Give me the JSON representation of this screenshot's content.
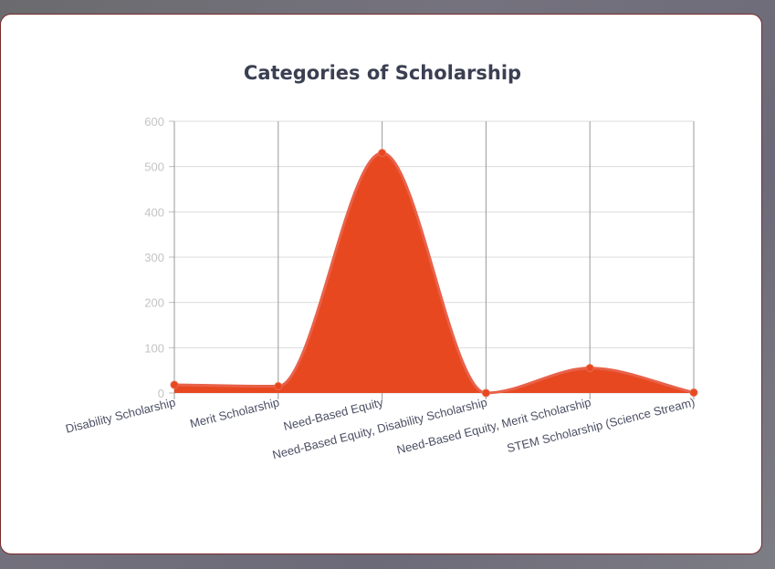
{
  "chart_data": {
    "type": "area",
    "title": "Categories of Scholarship",
    "categories": [
      "Disability Scholarship",
      "Merit Scholarship",
      "Need-Based Equity",
      "Need-Based Equity, Disability Scholarship",
      "Need-Based Equity, Merit Scholarship",
      "STEM Scholarship (Science Stream)"
    ],
    "values": [
      18,
      15,
      530,
      0,
      55,
      1
    ],
    "ylim": [
      0,
      600
    ],
    "yticks": [
      "0",
      "100",
      "200",
      "300",
      "400",
      "500",
      "600"
    ],
    "xlabel": "",
    "ylabel": "",
    "grid": true,
    "legend": "none",
    "colors": {
      "fill": "#e84820",
      "line": "#e8624a",
      "point": "#e84820"
    }
  }
}
